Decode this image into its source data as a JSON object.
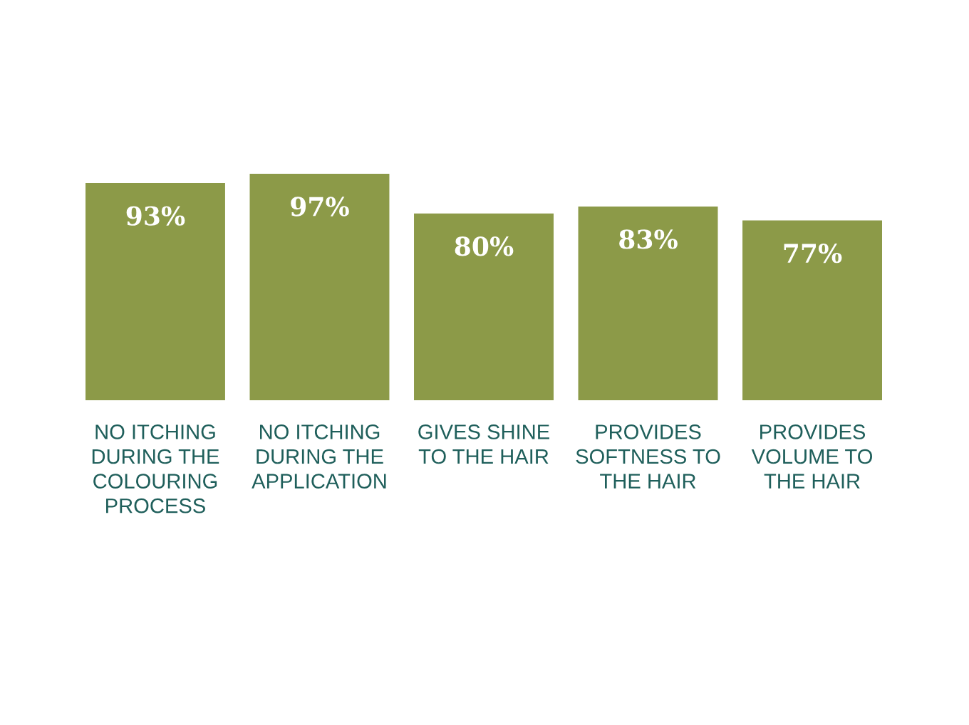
{
  "chart_data": {
    "type": "bar",
    "categories": [
      "NO ITCHING\nDURING THE\nCOLOURING\nPROCESS",
      "NO ITCHING\nDURING THE\nAPPLICATION",
      "GIVES SHINE\nTO THE HAIR",
      "PROVIDES\nSOFTNESS TO\nTHE HAIR",
      "PROVIDES\nVOLUME TO\nTHE HAIR"
    ],
    "values": [
      93,
      97,
      80,
      83,
      77
    ],
    "value_labels": [
      "93%",
      "97%",
      "80%",
      "83%",
      "77%"
    ],
    "color": "#8c9a48",
    "grid": false,
    "legend": false
  }
}
